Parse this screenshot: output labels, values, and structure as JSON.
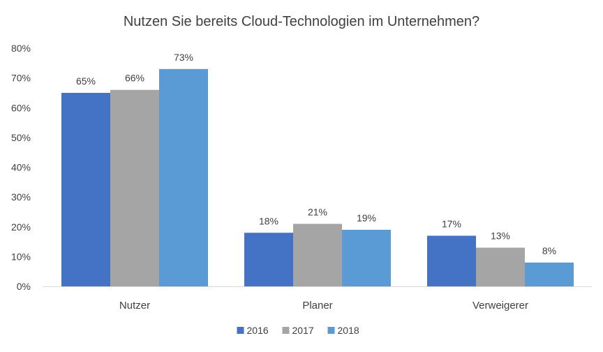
{
  "chart_data": {
    "type": "bar",
    "title": "Nutzen Sie bereits Cloud-Technologien im Unternehmen?",
    "xlabel": "",
    "ylabel": "",
    "categories": [
      "Nutzer",
      "Planer",
      "Verweigerer"
    ],
    "series": [
      {
        "name": "2016",
        "color": "#4472C4",
        "values": [
          65,
          18,
          17
        ],
        "labels": [
          "65%",
          "18%",
          "17%"
        ]
      },
      {
        "name": "2017",
        "color": "#A5A5A5",
        "values": [
          66,
          21,
          13
        ],
        "labels": [
          "66%",
          "21%",
          "13%"
        ]
      },
      {
        "name": "2018",
        "color": "#5B9BD5",
        "values": [
          73,
          19,
          8
        ],
        "labels": [
          "73%",
          "19%",
          "8%"
        ]
      }
    ],
    "ylim": [
      0,
      80
    ],
    "yticks": [
      0,
      10,
      20,
      30,
      40,
      50,
      60,
      70,
      80
    ],
    "ytick_labels": [
      "0%",
      "10%",
      "20%",
      "30%",
      "40%",
      "50%",
      "60%",
      "70%",
      "80%"
    ],
    "grid": false,
    "legend": "bottom"
  }
}
